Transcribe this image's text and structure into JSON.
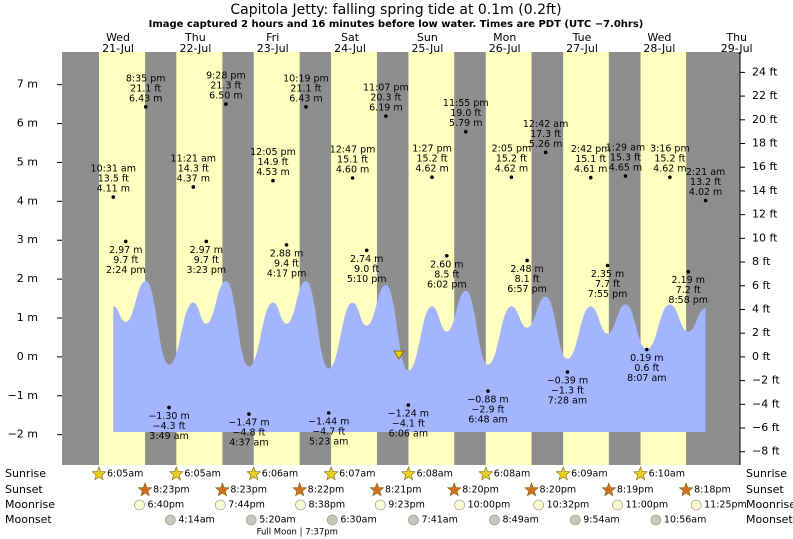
{
  "header": {
    "title": "Capitola Jetty: falling  spring tide at 0.1m (0.2ft)",
    "subtitle": "Image captured 2 hours and 16 minutes before low water. Times are PDT (UTC −7.0hrs)"
  },
  "row_labels": {
    "sunrise": "Sunrise",
    "sunset": "Sunset",
    "moonrise": "Moonrise",
    "moonset": "Moonset"
  },
  "chart_data": {
    "type": "tide",
    "ylim": [
      -2.78,
      7.84
    ],
    "yticks": [
      {
        "value": -2,
        "label": "−2 m"
      },
      {
        "value": -1,
        "label": "−1 m"
      },
      {
        "value": 0,
        "label": "0 m"
      },
      {
        "value": 1,
        "label": "1 m"
      },
      {
        "value": 2,
        "label": "2 m"
      },
      {
        "value": 3,
        "label": "3 m"
      },
      {
        "value": 4,
        "label": "4 m"
      },
      {
        "value": 5,
        "label": "5 m"
      },
      {
        "value": 6,
        "label": "6 m"
      },
      {
        "value": 7,
        "label": "7 m"
      }
    ],
    "y2lim": [
      -9.12,
      25.72
    ],
    "y2ticks": [
      {
        "value": -8,
        "label": "−8 ft"
      },
      {
        "value": -6,
        "label": "−6 ft"
      },
      {
        "value": -4,
        "label": "−4 ft"
      },
      {
        "value": -2,
        "label": "−2 ft"
      },
      {
        "value": 0,
        "label": "0 ft"
      },
      {
        "value": 2,
        "label": "2 ft"
      },
      {
        "value": 4,
        "label": "4 ft"
      },
      {
        "value": 6,
        "label": "6 ft"
      },
      {
        "value": 8,
        "label": "8 ft"
      },
      {
        "value": 10,
        "label": "10 ft"
      },
      {
        "value": 12,
        "label": "12 ft"
      },
      {
        "value": 14,
        "label": "14 ft"
      },
      {
        "value": 16,
        "label": "16 ft"
      },
      {
        "value": 18,
        "label": "18 ft"
      },
      {
        "value": 20,
        "label": "20 ft"
      },
      {
        "value": 22,
        "label": "22 ft"
      },
      {
        "value": 24,
        "label": "24 ft"
      }
    ],
    "fill_base": -1.93,
    "colors": {
      "night": "#8e8e8e",
      "day": "#ffffc0",
      "water": "#a3b5ff",
      "day_name": "#e00000"
    },
    "days": [
      {
        "name": "Wed",
        "date": "21-Jul",
        "sunrise": "6:05am",
        "sunset": "8:23pm",
        "moonrise": "6:40pm",
        "tides": [
          {
            "time": "10:31 am",
            "m": 4.11,
            "m_label": "4.11 m",
            "ft_label": "13.5 ft",
            "curve": 1.3
          },
          {
            "time": "2:24 pm",
            "m": 2.97,
            "m_label": "2.97 m",
            "ft_label": "9.7 ft",
            "curve": 0.9
          },
          {
            "time": "8:35 pm",
            "m": 6.43,
            "m_label": "6.43 m",
            "ft_label": "21.1 ft",
            "curve": 1.95
          }
        ]
      },
      {
        "name": "Thu",
        "date": "22-Jul",
        "sunrise": "6:05am",
        "sunset": "8:23pm",
        "moonrise": "7:44pm",
        "moonset": "4:14am",
        "tides": [
          {
            "time": "3:49 am",
            "m": -1.3,
            "m_label": "−1.30 m",
            "ft_label": "−4.3 ft",
            "curve": -0.2
          },
          {
            "time": "11:21 am",
            "m": 4.37,
            "m_label": "4.37 m",
            "ft_label": "14.3 ft",
            "curve": 1.4
          },
          {
            "time": "3:23 pm",
            "m": 2.97,
            "m_label": "2.97 m",
            "ft_label": "9.7 ft",
            "curve": 0.85
          },
          {
            "time": "9:28 pm",
            "m": 6.5,
            "m_label": "6.50 m",
            "ft_label": "21.3 ft",
            "curve": 1.95
          }
        ]
      },
      {
        "name": "Fri",
        "date": "23-Jul",
        "sunrise": "6:06am",
        "sunset": "8:22pm",
        "moonrise": "8:38pm",
        "moonset": "5:20am",
        "moon_phase": "Full Moon | 7:37pm",
        "tides": [
          {
            "time": "4:37 am",
            "m": -1.47,
            "m_label": "−1.47 m",
            "ft_label": "−4.8 ft",
            "curve": -0.25
          },
          {
            "time": "12:05 pm",
            "m": 4.53,
            "m_label": "4.53 m",
            "ft_label": "14.9 ft",
            "curve": 1.4
          },
          {
            "time": "4:17 pm",
            "m": 2.88,
            "m_label": "2.88 m",
            "ft_label": "9.4 ft",
            "curve": 0.85
          },
          {
            "time": "10:19 pm",
            "m": 6.43,
            "m_label": "6.43 m",
            "ft_label": "21.1 ft",
            "curve": 1.95
          }
        ]
      },
      {
        "name": "Sat",
        "date": "24-Jul",
        "sunrise": "6:07am",
        "sunset": "8:21pm",
        "moonrise": "9:23pm",
        "moonset": "6:30am",
        "tides": [
          {
            "time": "5:23 am",
            "m": -1.44,
            "m_label": "−1.44 m",
            "ft_label": "−4.7 ft",
            "curve": -0.3
          },
          {
            "time": "12:47 pm",
            "m": 4.6,
            "m_label": "4.60 m",
            "ft_label": "15.1 ft",
            "curve": 1.4
          },
          {
            "time": "5:10 pm",
            "m": 2.74,
            "m_label": "2.74 m",
            "ft_label": "9.0 ft",
            "curve": 0.8
          },
          {
            "time": "11:07 pm",
            "m": 6.19,
            "m_label": "6.19 m",
            "ft_label": "20.3 ft",
            "curve": 1.85
          }
        ]
      },
      {
        "name": "Sun",
        "date": "25-Jul",
        "sunrise": "6:08am",
        "sunset": "8:20pm",
        "moonrise": "10:00pm",
        "moonset": "7:41am",
        "tides": [
          {
            "time": "6:06 am",
            "m": -1.24,
            "m_label": "−1.24 m",
            "ft_label": "−4.1 ft",
            "curve": -0.35
          },
          {
            "time": "1:27 pm",
            "m": 4.62,
            "m_label": "4.62 m",
            "ft_label": "15.2 ft",
            "curve": 1.3
          },
          {
            "time": "6:02 pm",
            "m": 2.6,
            "m_label": "2.60 m",
            "ft_label": "8.5 ft",
            "curve": 0.65
          },
          {
            "time": "11:55 pm",
            "m": 5.79,
            "m_label": "5.79 m",
            "ft_label": "19.0 ft",
            "curve": 1.7
          }
        ]
      },
      {
        "name": "Mon",
        "date": "26-Jul",
        "sunrise": "6:08am",
        "sunset": "8:20pm",
        "moonrise": "10:32pm",
        "moonset": "8:49am",
        "tides": [
          {
            "time": "6:48 am",
            "m": -0.88,
            "m_label": "−0.88 m",
            "ft_label": "−2.9 ft",
            "curve": -0.2
          },
          {
            "time": "2:05 pm",
            "m": 4.62,
            "m_label": "4.62 m",
            "ft_label": "15.2 ft",
            "curve": 1.3
          },
          {
            "time": "6:57 pm",
            "m": 2.48,
            "m_label": "2.48 m",
            "ft_label": "8.1 ft",
            "curve": 0.75
          }
        ]
      },
      {
        "name": "Tue",
        "date": "27-Jul",
        "sunrise": "6:09am",
        "sunset": "8:19pm",
        "moonrise": "11:00pm",
        "moonset": "9:54am",
        "tides": [
          {
            "time": "12:42 am",
            "m": 5.26,
            "m_label": "5.26 m",
            "ft_label": "17.3 ft",
            "curve": 1.55
          },
          {
            "time": "7:28 am",
            "m": -0.39,
            "m_label": "−0.39 m",
            "ft_label": "−1.3 ft",
            "curve": -0.05
          },
          {
            "time": "2:42 pm",
            "m": 4.61,
            "m_label": "4.61 m",
            "ft_label": "15.1 ft",
            "curve": 1.3
          },
          {
            "time": "7:55 pm",
            "m": 2.35,
            "m_label": "2.35 m",
            "ft_label": "7.7 ft",
            "curve": 0.6
          }
        ]
      },
      {
        "name": "Wed",
        "date": "28-Jul",
        "sunrise": "6:10am",
        "sunset": "8:18pm",
        "moonrise": "11:25pm",
        "moonset": "10:56am",
        "tides": [
          {
            "time": "1:29 am",
            "m": 4.65,
            "m_label": "4.65 m",
            "ft_label": "15.3 ft",
            "curve": 1.35
          },
          {
            "time": "8:07 am",
            "m": 0.19,
            "m_label": "0.19 m",
            "ft_label": "0.6 ft",
            "curve": 0.2
          },
          {
            "time": "3:16 pm",
            "m": 4.62,
            "m_label": "4.62 m",
            "ft_label": "15.2 ft",
            "curve": 1.35
          },
          {
            "time": "8:58 pm",
            "m": 2.19,
            "m_label": "2.19 m",
            "ft_label": "7.2 ft",
            "curve": 0.65
          }
        ]
      },
      {
        "name": "Thu",
        "date": "29-Jul",
        "tides": [
          {
            "time": "2:21 am",
            "m": 4.02,
            "m_label": "4.02 m",
            "ft_label": "13.2 ft",
            "curve": 1.25
          }
        ]
      }
    ]
  }
}
